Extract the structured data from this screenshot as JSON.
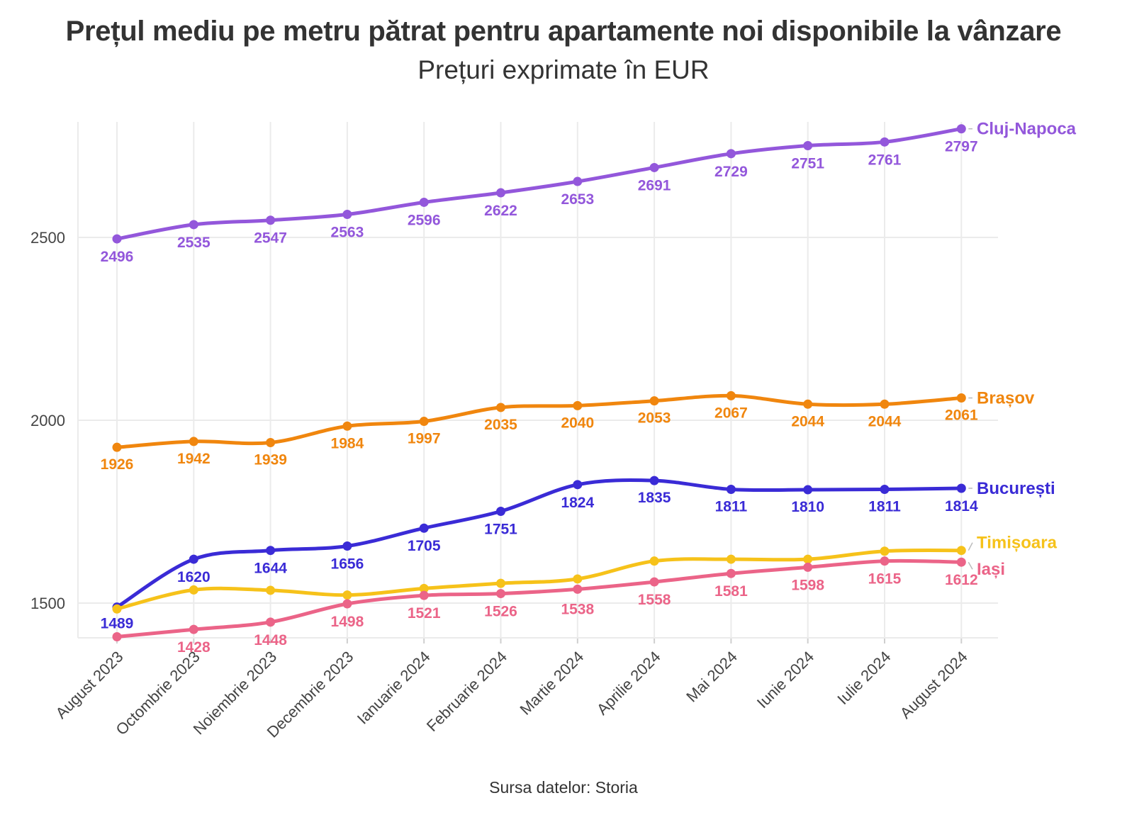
{
  "chart_data": {
    "type": "line",
    "title": "Prețul mediu pe metru pătrat pentru apartamente noi disponibile la vânzare",
    "subtitle": "Prețuri exprimate în EUR",
    "caption": "Sursa datelor: Storia",
    "xlabel": "",
    "ylabel": "",
    "categories": [
      "August 2023",
      "Octombrie 2023",
      "Noiembrie 2023",
      "Decembrie 2023",
      "Ianuarie 2024",
      "Februarie 2024",
      "Martie 2024",
      "Aprilie 2024",
      "Mai 2024",
      "Iunie 2024",
      "Iulie 2024",
      "August 2024"
    ],
    "ylim": [
      1400,
      2810
    ],
    "yticks": [
      1500,
      2000,
      2500
    ],
    "grid": true,
    "legend": "direct labels at right end of lines",
    "series": [
      {
        "name": "Cluj-Napoca",
        "color": "#9357DB",
        "values": [
          2496,
          2535,
          2547,
          2563,
          2596,
          2622,
          2653,
          2691,
          2729,
          2751,
          2761,
          2797
        ]
      },
      {
        "name": "Brașov",
        "color": "#F0860E",
        "values": [
          1926,
          1942,
          1939,
          1984,
          1997,
          2035,
          2040,
          2053,
          2067,
          2044,
          2044,
          2061
        ]
      },
      {
        "name": "București",
        "color": "#3A2BD6",
        "values": [
          1489,
          1620,
          1644,
          1656,
          1705,
          1751,
          1824,
          1835,
          1811,
          1810,
          1811,
          1814
        ]
      },
      {
        "name": "Timișoara",
        "color": "#F6C21A",
        "values": [
          1484,
          1536,
          1535,
          1522,
          1540,
          1554,
          1566,
          1615,
          1620,
          1620,
          1642,
          1644
        ]
      },
      {
        "name": "Iași",
        "color": "#EB6488",
        "values": [
          1408,
          1428,
          1448,
          1498,
          1521,
          1526,
          1538,
          1558,
          1581,
          1598,
          1615,
          1612
        ]
      }
    ],
    "data_labels": {
      "Cluj-Napoca": [
        "2496",
        "2535",
        "2547",
        "2563",
        "2596",
        "2622",
        "2653",
        "2691",
        "2729",
        "2751",
        "2761",
        "2797"
      ],
      "Brașov": [
        "1926",
        "1942",
        "1939",
        "1984",
        "1997",
        "2035",
        "2040",
        "2053",
        "2067",
        "2044",
        "2044",
        "2061"
      ],
      "București": [
        "1489",
        "1620",
        "1644",
        "1656",
        "1705",
        "1751",
        "1824",
        "1835",
        "1811",
        "1810",
        "1811",
        "1814"
      ],
      "Timișoara": [
        "",
        "",
        "",
        "",
        "",
        "",
        "",
        "",
        "",
        "",
        "",
        ""
      ],
      "Iași": [
        "",
        "1428",
        "1448",
        "1498",
        "1521",
        "1526",
        "1538",
        "1558",
        "1581",
        "1598",
        "1615",
        "1612"
      ]
    }
  }
}
